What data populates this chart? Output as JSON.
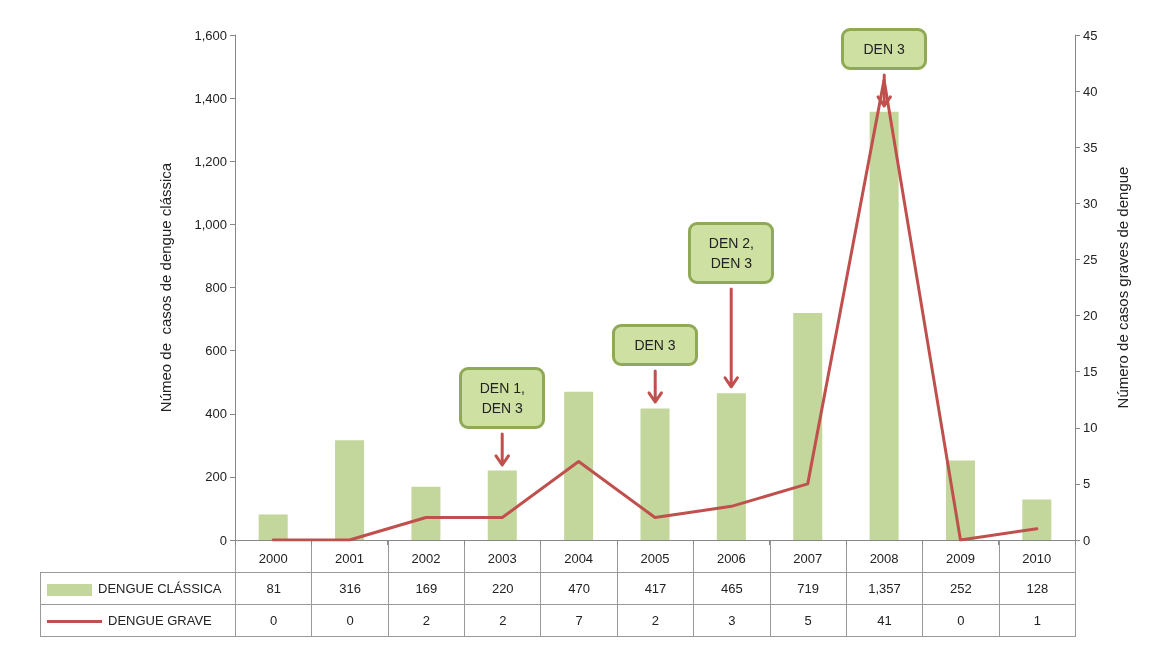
{
  "chart_data": {
    "type": "bar",
    "ylabel": "Númeo de  casos de dengue clássica",
    "y2label": "Número de casos graves de dengue",
    "categories": [
      "2000",
      "2001",
      "2002",
      "2003",
      "2004",
      "2005",
      "2006",
      "2007",
      "2008",
      "2009",
      "2010"
    ],
    "series": [
      {
        "name": "DENGUE CLÁSSICA",
        "color": "#c3d69b",
        "values": [
          81,
          316,
          169,
          220,
          470,
          417,
          465,
          719,
          1357,
          252,
          128
        ],
        "value_labels": [
          "81",
          "316",
          "169",
          "220",
          "470",
          "417",
          "465",
          "719",
          "1,357",
          "252",
          "128"
        ]
      },
      {
        "name": "DENGUE GRAVE",
        "type": "line",
        "axis": "y2",
        "color": "#c0504d",
        "values": [
          0,
          0,
          2,
          2,
          7,
          2,
          3,
          5,
          41,
          0,
          1
        ]
      }
    ],
    "ylim": [
      0,
      1600
    ],
    "yticks": [
      0,
      200,
      400,
      600,
      800,
      {
        "value": 1000,
        "label": "1,000"
      },
      {
        "value": 1200,
        "label": "1,200"
      },
      {
        "value": 1400,
        "label": "1,400"
      },
      {
        "value": 1600,
        "label": "1,600"
      }
    ],
    "y2lim": [
      0,
      45
    ],
    "y2ticks": [
      0,
      5,
      10,
      15,
      20,
      25,
      30,
      35,
      40,
      45
    ],
    "grid": false,
    "legend": "bottom",
    "marker": "none",
    "line_style": "solid",
    "data_labels": true,
    "annotations": [
      {
        "text": "DEN 1, DEN 3",
        "x": "2003",
        "y": 220
      },
      {
        "text": "DEN 3",
        "x": "2005",
        "y": 417
      },
      {
        "text": "DEN 2, DEN 3",
        "x": "2006",
        "y": 465
      },
      {
        "text": "DEN 3",
        "x": "2008",
        "y": 1357
      }
    ]
  }
}
